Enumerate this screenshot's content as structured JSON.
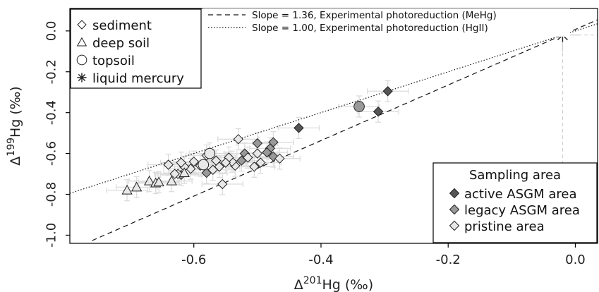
{
  "chart_data": {
    "type": "scatter",
    "x_label": {
      "prefix": "Δ",
      "sup": "201",
      "main": "Hg (‰)"
    },
    "y_label": {
      "prefix": "Δ",
      "sup": "199",
      "main": "Hg (‰)"
    },
    "xlim": [
      -0.795,
      0.035
    ],
    "ylim": [
      -1.04,
      0.11
    ],
    "x_ticks": [
      -0.6,
      -0.4,
      -0.2,
      0.0
    ],
    "x_tick_labels": [
      "-0.6",
      "-0.4",
      "-0.2",
      "0.0"
    ],
    "y_ticks": [
      0.0,
      -0.2,
      -0.4,
      -0.6,
      -0.8,
      -1.0
    ],
    "y_tick_labels": [
      "0.0",
      "-0.2",
      "-0.4",
      "-0.6",
      "-0.8",
      "-1.0"
    ],
    "reference_lines": [
      {
        "label": "Slope = 1.36, Experimental photoreduction (MeHg)",
        "slope": 1.36,
        "anchor": [
          -0.02,
          -0.02
        ],
        "style": "dashed"
      },
      {
        "label": "Slope = 1.00, Experimental photoreduction (HgII)",
        "slope": 1.0,
        "anchor": [
          -0.02,
          -0.02
        ],
        "style": "dotted"
      }
    ],
    "crosshair": {
      "x": -0.02,
      "y": -0.02
    },
    "shape_legend": [
      {
        "shape": "diamond",
        "label": "sediment"
      },
      {
        "shape": "triangle",
        "label": "deep soil"
      },
      {
        "shape": "circle",
        "label": "topsoil"
      },
      {
        "shape": "asterisk",
        "label": "liquid mercury"
      }
    ],
    "area_legend": {
      "title": "Sampling area",
      "items": [
        {
          "label": "active ASGM area",
          "color": "#555555"
        },
        {
          "label": "legacy ASGM area",
          "color": "#999999"
        },
        {
          "label": "pristine area",
          "color": "#e8e8e8"
        }
      ]
    },
    "series": [
      {
        "shape": "diamond",
        "area": "active",
        "points": [
          [
            -0.295,
            -0.295
          ],
          [
            -0.31,
            -0.395
          ],
          [
            -0.435,
            -0.475
          ]
        ]
      },
      {
        "shape": "diamond",
        "area": "legacy",
        "points": [
          [
            -0.475,
            -0.545
          ],
          [
            -0.48,
            -0.575
          ],
          [
            -0.475,
            -0.615
          ],
          [
            -0.485,
            -0.595
          ],
          [
            -0.5,
            -0.55
          ],
          [
            -0.52,
            -0.6
          ],
          [
            -0.525,
            -0.635
          ],
          [
            -0.58,
            -0.695
          ],
          [
            -0.62,
            -0.705
          ]
        ]
      },
      {
        "shape": "diamond",
        "area": "pristine",
        "points": [
          [
            -0.53,
            -0.53
          ],
          [
            -0.555,
            -0.75
          ],
          [
            -0.5,
            -0.6
          ],
          [
            -0.495,
            -0.645
          ],
          [
            -0.505,
            -0.665
          ],
          [
            -0.515,
            -0.62
          ],
          [
            -0.535,
            -0.66
          ],
          [
            -0.54,
            -0.64
          ],
          [
            -0.545,
            -0.62
          ],
          [
            -0.55,
            -0.645
          ],
          [
            -0.56,
            -0.665
          ],
          [
            -0.565,
            -0.635
          ],
          [
            -0.57,
            -0.68
          ],
          [
            -0.58,
            -0.61
          ],
          [
            -0.59,
            -0.66
          ],
          [
            -0.6,
            -0.64
          ],
          [
            -0.605,
            -0.675
          ],
          [
            -0.615,
            -0.665
          ],
          [
            -0.62,
            -0.645
          ],
          [
            -0.625,
            -0.7
          ],
          [
            -0.63,
            -0.7
          ],
          [
            -0.64,
            -0.655
          ],
          [
            -0.465,
            -0.625
          ]
        ]
      },
      {
        "shape": "triangle",
        "area": "pristine",
        "points": [
          [
            -0.705,
            -0.78
          ],
          [
            -0.69,
            -0.765
          ],
          [
            -0.67,
            -0.735
          ],
          [
            -0.66,
            -0.745
          ],
          [
            -0.655,
            -0.74
          ],
          [
            -0.635,
            -0.735
          ],
          [
            -0.615,
            -0.695
          ]
        ]
      },
      {
        "shape": "circle",
        "area": "legacy",
        "points": [
          [
            -0.34,
            -0.37
          ]
        ]
      },
      {
        "shape": "circle",
        "area": "pristine",
        "points": [
          [
            -0.575,
            -0.6
          ],
          [
            -0.585,
            -0.655
          ]
        ]
      },
      {
        "shape": "asterisk",
        "area": "none",
        "points": [
          [
            -0.02,
            -0.02
          ]
        ]
      }
    ]
  }
}
